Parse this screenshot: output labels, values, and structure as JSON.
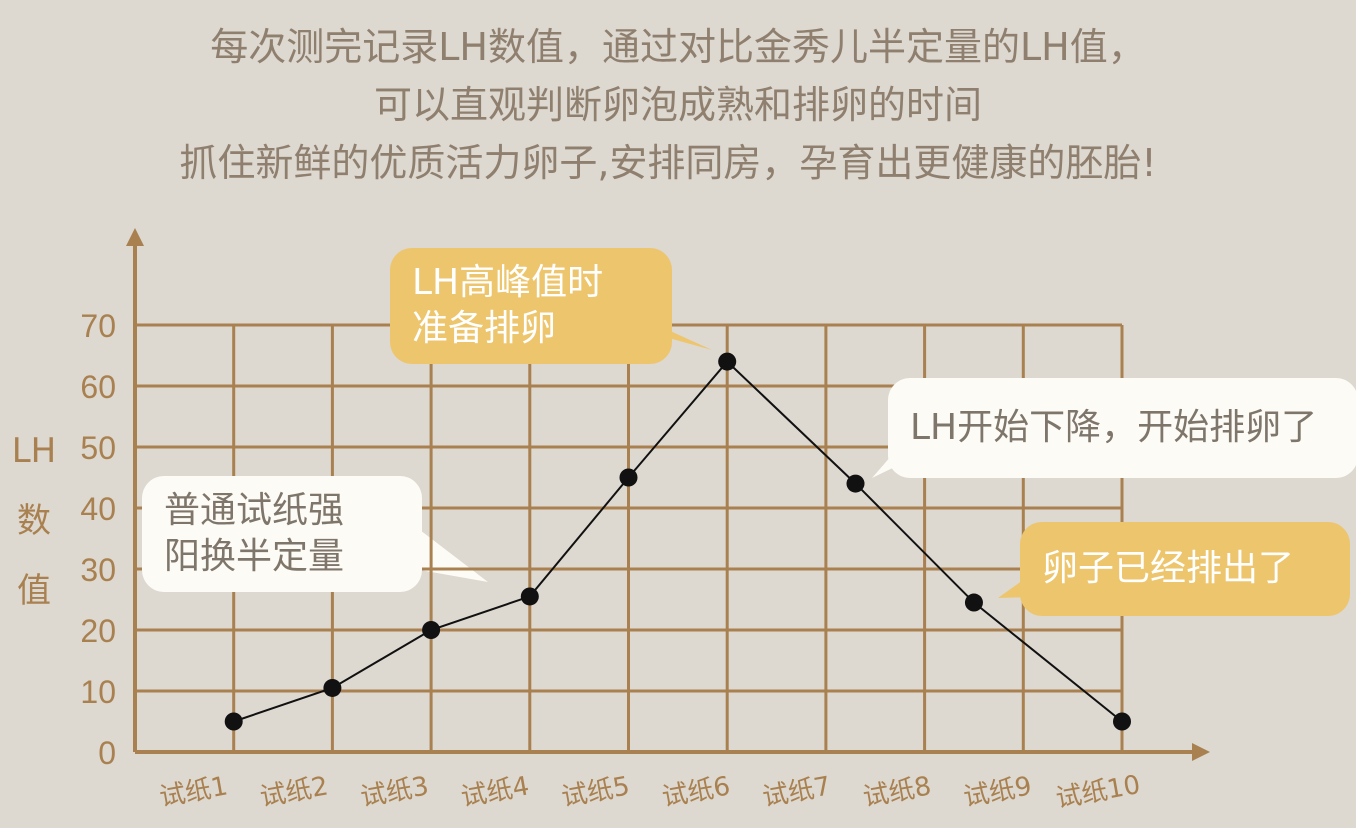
{
  "headline": [
    "每次测完记录LH数值，通过对比金秀儿半定量的LH值，",
    "可以直观判断卵泡成熟和排卵的时间",
    "抓住新鲜的优质活力卵子,安排同房，孕育出更健康的胚胎!"
  ],
  "chart_data": {
    "type": "line",
    "ylabel": "LH数值",
    "ylabel_lines": [
      "LH",
      "数",
      "值"
    ],
    "yticks": [
      0,
      10,
      20,
      30,
      40,
      50,
      60,
      70
    ],
    "ylim": [
      0,
      70
    ],
    "xlim": [
      0,
      10
    ],
    "categories": [
      "试纸1",
      "试纸2",
      "试纸3",
      "试纸4",
      "试纸5",
      "试纸6",
      "试纸7",
      "试纸8",
      "试纸9",
      "试纸10"
    ],
    "points": {
      "x": [
        1,
        2,
        3,
        4,
        5,
        6,
        7.3,
        8.5,
        10
      ],
      "y": [
        5,
        10.5,
        20,
        25.5,
        45,
        64,
        44,
        24.5,
        5
      ]
    },
    "grid": true,
    "annotations": [
      {
        "lines": [
          "普通试纸强",
          "阳换半定量"
        ],
        "style": "white"
      },
      {
        "lines": [
          "LH高峰值时",
          "准备排卵"
        ],
        "style": "yellow"
      },
      {
        "lines": [
          "LH开始下降，开始排卵了"
        ],
        "style": "white"
      },
      {
        "lines": [
          "卵子已经排出了"
        ],
        "style": "yellow"
      }
    ],
    "colors": {
      "grid": "#a9804f",
      "axis_text": "#a9804f",
      "line": "#111111",
      "bubble_yellow": "#edc56d",
      "bubble_white": "#fdfbf5",
      "background": "#ddd8d0"
    }
  }
}
